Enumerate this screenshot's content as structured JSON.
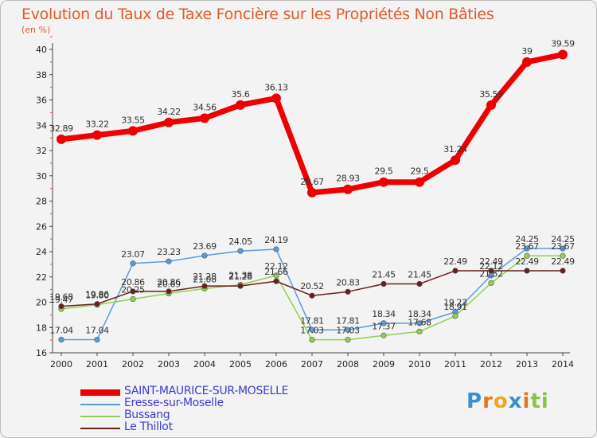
{
  "title": "Evolution du Taux de Taxe Foncière sur les Propriétés Non Bâties",
  "unit_label": "(en %)",
  "logo": {
    "letters": [
      "P",
      "r",
      "o",
      "x",
      "i",
      "t",
      "i"
    ],
    "colors": [
      "#3a8fd0",
      "#e07a1f",
      "#f2a51e",
      "#3a8fd0",
      "#e07a1f",
      "#8bc34a",
      "#8bc34a"
    ]
  },
  "chart_data": {
    "type": "line",
    "x": [
      "2000",
      "2001",
      "2002",
      "2003",
      "2004",
      "2005",
      "2006",
      "2007",
      "2008",
      "2009",
      "2010",
      "2011",
      "2012",
      "2013",
      "2014"
    ],
    "ylim": [
      16,
      40
    ],
    "yticks": [
      "16",
      "18",
      "20",
      "22",
      "24",
      "26",
      "28",
      "30",
      "32",
      "34",
      "36",
      "38",
      "40"
    ],
    "grid": false,
    "legend_position": "bottom-left",
    "series": [
      {
        "name": "SAINT-MAURICE-SUR-MOSELLE",
        "color": "#ee0000",
        "values": [
          32.89,
          33.22,
          33.55,
          34.22,
          34.56,
          35.6,
          36.13,
          28.67,
          28.93,
          29.5,
          29.5,
          31.24,
          35.59,
          39,
          39.59
        ],
        "labels": [
          "32.89",
          "33.22",
          "33.55",
          "34.22",
          "34.56",
          "35.6",
          "36.13",
          "28.67",
          "28.93",
          "29.5",
          "29.5",
          "31.24",
          "35.59",
          "39",
          "39.59"
        ]
      },
      {
        "name": "Eresse-sur-Moselle",
        "color": "#5b9bd5",
        "values": [
          17.04,
          17.04,
          23.07,
          23.23,
          23.69,
          24.05,
          24.19,
          17.81,
          17.81,
          18.34,
          18.34,
          19.23,
          22.12,
          24.25,
          24.25
        ],
        "labels": [
          "17.04",
          "17.04",
          "23.07",
          "23.23",
          "23.69",
          "24.05",
          "24.19",
          "17.81",
          "17.81",
          "18.34",
          "18.34",
          "19.23",
          "22.12",
          "24.25",
          "24.25"
        ]
      },
      {
        "name": "Bussang",
        "color": "#8fd14f",
        "values": [
          19.47,
          19.8,
          20.25,
          20.69,
          21.08,
          21.38,
          22.12,
          17.03,
          17.03,
          17.37,
          17.68,
          18.91,
          21.52,
          23.67,
          23.67
        ],
        "labels": [
          "19.47",
          "19.80",
          "20.25",
          "20.69",
          "21.08",
          "21.38",
          "22.12",
          "17.03",
          "17.03",
          "17.37",
          "17.68",
          "18.91",
          "21.52",
          "23.67",
          "23.67"
        ]
      },
      {
        "name": "Le Thillot",
        "color": "#6b1e1e",
        "values": [
          19.68,
          19.86,
          20.86,
          20.86,
          21.28,
          21.28,
          21.66,
          20.52,
          20.83,
          21.45,
          21.45,
          22.49,
          22.49,
          22.49,
          22.49
        ],
        "labels": [
          "19.68",
          "19.86",
          "20.86",
          "20.86",
          "21.28",
          "21.28",
          "21.66",
          "20.52",
          "20.83",
          "21.45",
          "21.45",
          "22.49",
          "22.49",
          "22.49",
          "22.49"
        ]
      }
    ]
  }
}
